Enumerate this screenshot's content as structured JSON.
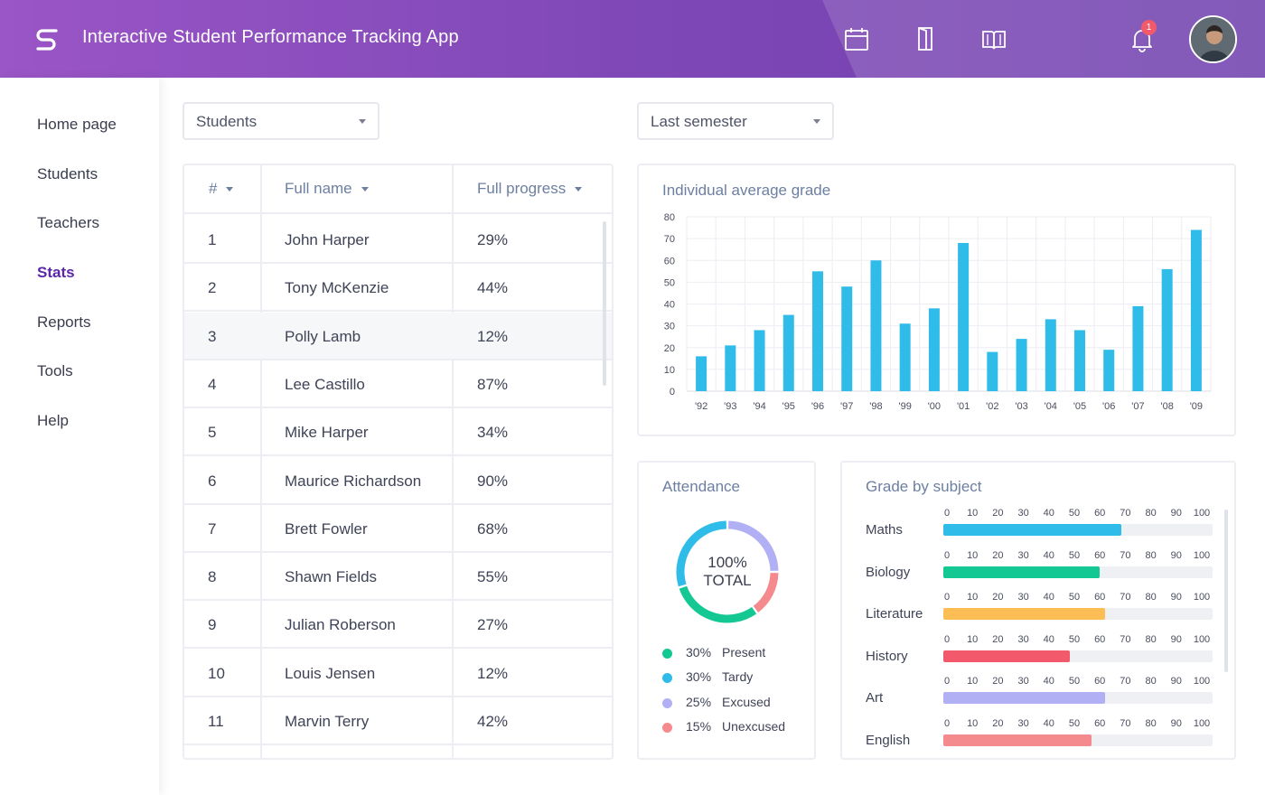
{
  "header": {
    "title": "Interactive Student Performance Tracking App",
    "icons": [
      "calendar-icon",
      "door-icon",
      "book-icon",
      "bell-icon"
    ],
    "notification_count": "1"
  },
  "sidebar": {
    "items": [
      {
        "label": "Home page",
        "active": false
      },
      {
        "label": "Students",
        "active": false
      },
      {
        "label": "Teachers",
        "active": false
      },
      {
        "label": "Stats",
        "active": true
      },
      {
        "label": "Reports",
        "active": false
      },
      {
        "label": "Tools",
        "active": false
      },
      {
        "label": "Help",
        "active": false
      }
    ]
  },
  "filters": {
    "group_select": "Students",
    "period_select": "Last semester"
  },
  "table": {
    "columns": [
      "#",
      "Full name",
      "Full progress"
    ],
    "rows": [
      {
        "num": "1",
        "name": "John Harper",
        "progress": "29%"
      },
      {
        "num": "2",
        "name": "Tony McKenzie",
        "progress": "44%"
      },
      {
        "num": "3",
        "name": "Polly Lamb",
        "progress": "12%"
      },
      {
        "num": "4",
        "name": "Lee Castillo",
        "progress": "87%"
      },
      {
        "num": "5",
        "name": "Mike Harper",
        "progress": "34%"
      },
      {
        "num": "6",
        "name": "Maurice Richardson",
        "progress": "90%"
      },
      {
        "num": "7",
        "name": "Brett Fowler",
        "progress": "68%"
      },
      {
        "num": "8",
        "name": "Shawn Fields",
        "progress": "55%"
      },
      {
        "num": "9",
        "name": "Julian Roberson",
        "progress": "27%"
      },
      {
        "num": "10",
        "name": "Louis Jensen",
        "progress": "12%"
      },
      {
        "num": "11",
        "name": "Marvin Terry",
        "progress": "42%"
      }
    ],
    "highlighted_row": 3
  },
  "chart_data": [
    {
      "type": "bar",
      "title": "Individual average grade",
      "categories": [
        "'92",
        "'93",
        "'94",
        "'95",
        "'96",
        "'97",
        "'98",
        "'99",
        "'00",
        "'01",
        "'02",
        "'03",
        "'04",
        "'05",
        "'06",
        "'07",
        "'08",
        "'09"
      ],
      "values": [
        16,
        21,
        28,
        35,
        55,
        48,
        60,
        31,
        38,
        68,
        18,
        24,
        33,
        28,
        19,
        39,
        56,
        74
      ],
      "ylim": [
        0,
        80
      ],
      "yticks": [
        "0",
        "10",
        "20",
        "30",
        "40",
        "50",
        "60",
        "70",
        "80"
      ],
      "grid": true,
      "color": "#2fbce9"
    },
    {
      "type": "pie",
      "title": "Attendance",
      "center_text": [
        "100%",
        "TOTAL"
      ],
      "slices": [
        {
          "pct": "30%",
          "label": "Present",
          "value": 30,
          "color": "#14c894"
        },
        {
          "pct": "30%",
          "label": "Tardy",
          "value": 30,
          "color": "#2fbce9"
        },
        {
          "pct": "25%",
          "label": "Excused",
          "value": 25,
          "color": "#b2b0f5"
        },
        {
          "pct": "15%",
          "label": "Unexcused",
          "value": 15,
          "color": "#f58a8e"
        }
      ]
    },
    {
      "type": "bar",
      "title": "Grade by subject",
      "orientation": "horizontal",
      "xticks": [
        "0",
        "10",
        "20",
        "30",
        "40",
        "50",
        "60",
        "70",
        "80",
        "90",
        "100"
      ],
      "xlim": [
        0,
        100
      ],
      "subjects": [
        {
          "label": "Maths",
          "value": 66,
          "color": "#2fbce9"
        },
        {
          "label": "Biology",
          "value": 58,
          "color": "#14c894"
        },
        {
          "label": "Literature",
          "value": 60,
          "color": "#fbbd54"
        },
        {
          "label": "History",
          "value": 47,
          "color": "#f25a6b"
        },
        {
          "label": "Art",
          "value": 60,
          "color": "#b2b0f5"
        },
        {
          "label": "English",
          "value": 55,
          "color": "#f58a8e"
        }
      ]
    }
  ]
}
